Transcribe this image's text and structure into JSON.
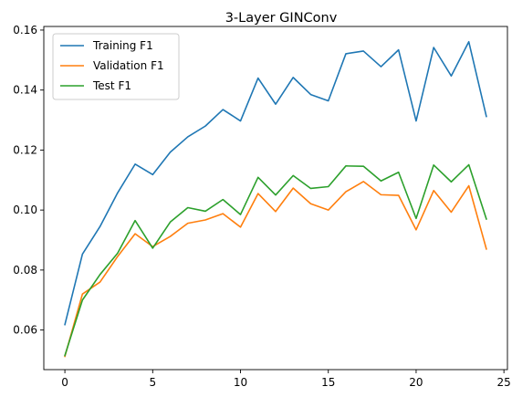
{
  "chart_data": {
    "type": "line",
    "title": "3-Layer GINConv",
    "xlabel": "",
    "ylabel": "",
    "xlim": [
      -1.2,
      25.2
    ],
    "ylim": [
      0.0468,
      0.1612
    ],
    "x_ticks": [
      0,
      5,
      10,
      15,
      20,
      25
    ],
    "y_ticks": [
      0.06,
      0.08,
      0.1,
      0.12,
      0.14,
      0.16
    ],
    "grid": false,
    "legend_position": "top-left",
    "x": [
      0,
      1,
      2,
      3,
      4,
      5,
      6,
      7,
      8,
      9,
      10,
      11,
      12,
      13,
      14,
      15,
      16,
      17,
      18,
      19,
      20,
      21,
      22,
      23,
      24
    ],
    "series": [
      {
        "name": "Training F1",
        "color": "#1f77b4",
        "values": [
          0.0618,
          0.0853,
          0.0945,
          0.1057,
          0.1153,
          0.1118,
          0.1193,
          0.1244,
          0.128,
          0.1335,
          0.1297,
          0.144,
          0.1353,
          0.1442,
          0.1385,
          0.1364,
          0.1521,
          0.153,
          0.1478,
          0.1534,
          0.1297,
          0.1542,
          0.1447,
          0.1561,
          0.1312
        ]
      },
      {
        "name": "Validation F1",
        "color": "#ff7f0e",
        "values": [
          0.0512,
          0.072,
          0.076,
          0.0845,
          0.0921,
          0.0878,
          0.0912,
          0.0956,
          0.0967,
          0.0988,
          0.0943,
          0.1055,
          0.0995,
          0.1073,
          0.1021,
          0.1,
          0.1061,
          0.1095,
          0.1051,
          0.1049,
          0.0934,
          0.1065,
          0.0993,
          0.1081,
          0.087
        ]
      },
      {
        "name": "Test F1",
        "color": "#2ca02c",
        "values": [
          0.0515,
          0.07,
          0.0785,
          0.0856,
          0.0965,
          0.0873,
          0.096,
          0.1008,
          0.0996,
          0.1035,
          0.0985,
          0.1109,
          0.105,
          0.1115,
          0.1072,
          0.1078,
          0.1147,
          0.1146,
          0.1097,
          0.1126,
          0.0972,
          0.115,
          0.1094,
          0.1151,
          0.097
        ]
      }
    ]
  }
}
